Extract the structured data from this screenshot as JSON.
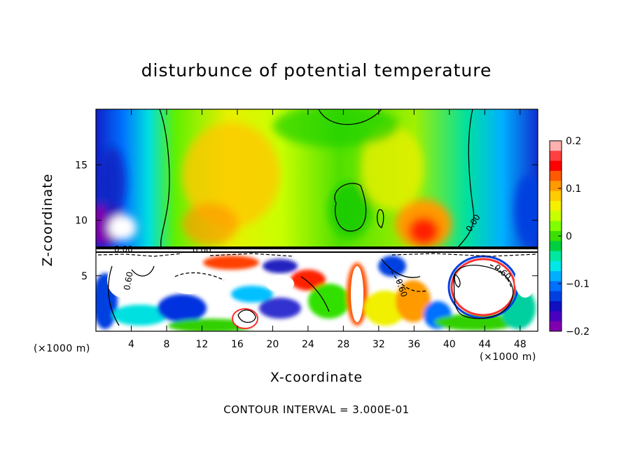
{
  "chart_data": {
    "type": "heatmap",
    "title": "disturbunce of potential temperature",
    "xlabel": "X-coordinate",
    "ylabel": "Z-coordinate",
    "x_unit_left": "(×1000 m)",
    "x_unit_right": "(×1000 m)",
    "xlim": [
      0,
      50
    ],
    "ylim": [
      0,
      20
    ],
    "x_ticks": [
      4,
      8,
      12,
      16,
      20,
      24,
      28,
      32,
      36,
      40,
      44,
      48
    ],
    "x_tick_labels": [
      "4",
      "8",
      "12",
      "16",
      "20",
      "24",
      "28",
      "32",
      "36",
      "40",
      "44",
      "48"
    ],
    "y_ticks": [
      5,
      10,
      15
    ],
    "y_tick_labels": [
      "5",
      "10",
      "15"
    ],
    "contour_interval_text": "CONTOUR INTERVAL = 3.000E-01",
    "contour_labels": [
      "0.00",
      "0.00",
      "0.00",
      "0.60",
      "0.60",
      "0.60"
    ],
    "colorbar": {
      "range": [
        -0.2,
        0.2
      ],
      "tick_values": [
        0.2,
        0.1,
        0,
        -0.1,
        -0.2
      ],
      "tick_labels": [
        "0.2",
        "0.1",
        "0",
        "−0.1",
        "−0.2"
      ],
      "colors": [
        "#ffb0b0",
        "#ff4040",
        "#ff0000",
        "#ff5a00",
        "#ff9a00",
        "#ffcc00",
        "#f4f000",
        "#c8ff00",
        "#80ff00",
        "#3ae000",
        "#00d040",
        "#00e8a0",
        "#00e8e8",
        "#00b0ff",
        "#0070ff",
        "#0040e0",
        "#1010c0",
        "#4a00c0",
        "#8000b0"
      ]
    },
    "grid": false,
    "legend_position": "right"
  }
}
